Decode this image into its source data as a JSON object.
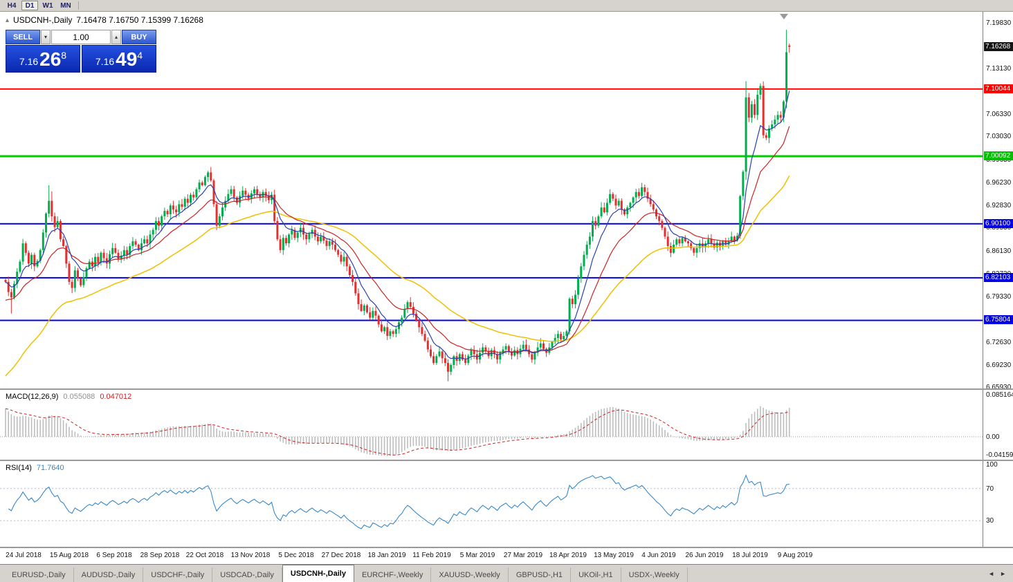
{
  "toolbar": {
    "timeframes": [
      "H4",
      "D1",
      "W1",
      "MN"
    ],
    "active": "D1"
  },
  "header": {
    "collapse_icon": "▴",
    "symbol": "USDCNH-,Daily",
    "ohlc_text": "7.16478 7.16750 7.15399 7.16268"
  },
  "one_click": {
    "sell_label": "SELL",
    "buy_label": "BUY",
    "volume": "1.00",
    "dec_icon": "▾",
    "inc_icon": "▴",
    "sell_price": {
      "prefix": "7.16",
      "big": "26",
      "sup": "8"
    },
    "buy_price": {
      "prefix": "7.16",
      "big": "49",
      "sup": "4"
    }
  },
  "macd_panel": {
    "title": "MACD(12,26,9)",
    "value_main": "0.055088",
    "value_signal": "0.047012",
    "scale_max": "0.085164",
    "scale_zero": "0.00",
    "scale_min": "-0.041597"
  },
  "rsi_panel": {
    "title": "RSI(14)",
    "value": "71.7640",
    "scale_labels": [
      "100",
      "70",
      "30"
    ]
  },
  "tabs": {
    "items": [
      "EURUSD-,Daily",
      "AUDUSD-,Daily",
      "USDCHF-,Daily",
      "USDCAD-,Daily",
      "USDCNH-,Daily",
      "EURCHF-,Weekly",
      "XAUUSD-,Weekly",
      "GBPUSD-,H1",
      "UKOil-,H1",
      "USDX-,Weekly"
    ],
    "active_index": 4,
    "scroll_left": "◄",
    "scroll_right": "►"
  },
  "chart_data": {
    "type": "candlestick",
    "symbol": "USDCNH-",
    "timeframe": "Daily",
    "current_bar": {
      "open": 7.16478,
      "high": 7.1675,
      "low": 7.15399,
      "close": 7.16268
    },
    "x_labels": [
      "24 Jul 2018",
      "15 Aug 2018",
      "6 Sep 2018",
      "28 Sep 2018",
      "22 Oct 2018",
      "13 Nov 2018",
      "5 Dec 2018",
      "27 Dec 2018",
      "18 Jan 2019",
      "11 Feb 2019",
      "5 Mar 2019",
      "27 Mar 2019",
      "18 Apr 2019",
      "13 May 2019",
      "4 Jun 2019",
      "26 Jun 2019",
      "18 Jul 2019",
      "9 Aug 2019"
    ],
    "y_ticks": [
      "7.19830",
      "7.16430",
      "7.13130",
      "7.09730",
      "7.06330",
      "7.03030",
      "6.99630",
      "6.96230",
      "6.92830",
      "6.89530",
      "6.86130",
      "6.82730",
      "6.79330",
      "6.75930",
      "6.72630",
      "6.69230",
      "6.65930"
    ],
    "open_first": 6.818,
    "closes": [
      6.815,
      6.8,
      6.792,
      6.812,
      6.83,
      6.845,
      6.872,
      6.858,
      6.842,
      6.855,
      6.838,
      6.846,
      6.862,
      6.888,
      6.916,
      6.935,
      6.912,
      6.896,
      6.905,
      6.878,
      6.868,
      6.842,
      6.815,
      6.806,
      6.832,
      6.82,
      6.81,
      6.822,
      6.835,
      6.845,
      6.838,
      6.852,
      6.844,
      6.858,
      6.85,
      6.842,
      6.856,
      6.865,
      6.858,
      6.848,
      6.854,
      6.862,
      6.855,
      6.868,
      6.875,
      6.87,
      6.862,
      6.872,
      6.878,
      6.872,
      6.885,
      6.892,
      6.905,
      6.898,
      6.912,
      6.92,
      6.915,
      6.928,
      6.922,
      6.918,
      6.93,
      6.926,
      6.938,
      6.932,
      6.944,
      6.94,
      6.952,
      6.962,
      6.958,
      6.97,
      6.977,
      6.965,
      6.93,
      6.898,
      6.912,
      6.925,
      6.935,
      6.945,
      6.952,
      6.94,
      6.932,
      6.942,
      6.95,
      6.944,
      6.938,
      6.946,
      6.952,
      6.945,
      6.94,
      6.948,
      6.942,
      6.936,
      6.944,
      6.905,
      6.878,
      6.862,
      6.88,
      6.872,
      6.885,
      6.892,
      6.88,
      6.888,
      6.895,
      6.885,
      6.878,
      6.886,
      6.892,
      6.882,
      6.875,
      6.882,
      6.876,
      6.868,
      6.875,
      6.87,
      6.862,
      6.855,
      6.845,
      6.852,
      6.838,
      6.825,
      6.815,
      6.798,
      6.782,
      6.772,
      6.78,
      6.77,
      6.762,
      6.772,
      6.765,
      6.752,
      6.742,
      6.748,
      6.735,
      6.742,
      6.738,
      6.745,
      6.755,
      6.762,
      6.775,
      6.785,
      6.778,
      6.768,
      6.758,
      6.748,
      6.738,
      6.728,
      6.715,
      6.705,
      6.695,
      6.705,
      6.712,
      6.702,
      6.695,
      6.682,
      6.692,
      6.705,
      6.698,
      6.708,
      6.7,
      6.695,
      6.706,
      6.714,
      6.708,
      6.7,
      6.71,
      6.718,
      6.712,
      6.705,
      6.714,
      6.708,
      6.7,
      6.71,
      6.715,
      6.72,
      6.712,
      6.706,
      6.714,
      6.708,
      6.716,
      6.722,
      6.715,
      6.708,
      6.7,
      6.71,
      6.718,
      6.724,
      6.716,
      6.71,
      6.718,
      6.726,
      6.732,
      6.738,
      6.73,
      6.735,
      6.742,
      6.79,
      6.782,
      6.796,
      6.82,
      6.838,
      6.855,
      6.87,
      6.882,
      6.905,
      6.898,
      6.912,
      6.925,
      6.918,
      6.932,
      6.945,
      6.938,
      6.928,
      6.935,
      6.922,
      6.915,
      6.925,
      6.932,
      6.94,
      6.948,
      6.942,
      6.955,
      6.948,
      6.938,
      6.93,
      6.922,
      6.912,
      6.905,
      6.895,
      6.882,
      6.868,
      6.858,
      6.87,
      6.878,
      6.872,
      6.88,
      6.875,
      6.872,
      6.865,
      6.858,
      6.865,
      6.872,
      6.866,
      6.872,
      6.878,
      6.872,
      6.866,
      6.873,
      6.868,
      6.875,
      6.87,
      6.876,
      6.882,
      6.876,
      6.883,
      6.942,
      6.978,
      7.088,
      7.058,
      7.078,
      7.062,
      7.092,
      7.105,
      7.032,
      7.028,
      7.042,
      7.048,
      7.055,
      7.062,
      7.058,
      7.082,
      7.128,
      7.16268
    ],
    "overrides": {
      "2": [
        null,
        null,
        6.768,
        null
      ],
      "15": [
        null,
        6.958,
        null,
        null
      ],
      "16": [
        null,
        6.949,
        null,
        null
      ],
      "153": [
        null,
        null,
        6.668,
        null
      ],
      "256": [
        null,
        7.112,
        6.966,
        null
      ],
      "270": [
        7.082,
        7.188,
        7.072,
        7.155
      ],
      "271": [
        7.16478,
        7.1675,
        7.15399,
        7.16268
      ]
    },
    "colors": {
      "up": "#00AE4D",
      "down": "#E23030",
      "histogram": "#BDBDBD",
      "signal": "#CC2222",
      "rsi_line": "#3388CC",
      "level_red": "#FF0000",
      "level_green": "#00CC00",
      "level_blue": "#0000E0",
      "badge_current": "#151515"
    },
    "mas": [
      {
        "name": "ma-slow",
        "period": 50,
        "color": "#EFC000",
        "seed": 6.67,
        "width": 1.5
      },
      {
        "name": "ma-mid",
        "period": 20,
        "color": "#CC2222",
        "seed": 6.785,
        "width": 1.2
      },
      {
        "name": "ma-fast",
        "period": 8,
        "color": "#2840B0",
        "seed": 6.815,
        "width": 1.2
      }
    ],
    "levels": [
      {
        "price": 7.10044,
        "color": "#FF0000",
        "width": 2
      },
      {
        "price": 7.00092,
        "color": "#00CC00",
        "width": 3
      },
      {
        "price": 6.901,
        "color": "#0000E0",
        "width": 2
      },
      {
        "price": 6.82103,
        "color": "#0000E0",
        "width": 2
      },
      {
        "price": 6.75804,
        "color": "#0000E0",
        "width": 2
      }
    ],
    "badges": [
      {
        "value": "7.16268",
        "price": 7.16268,
        "color": "#151515"
      },
      {
        "value": "7.10044",
        "price": 7.10044,
        "color": "#FF0000"
      },
      {
        "value": "7.00092",
        "price": 7.00092,
        "color": "#00C000"
      },
      {
        "value": "6.90100",
        "price": 6.901,
        "color": "#0000E0"
      },
      {
        "value": "6.82103",
        "price": 6.82103,
        "color": "#0000E0"
      },
      {
        "value": "6.75804",
        "price": 6.75804,
        "color": "#0000E0"
      }
    ],
    "macd": {
      "fast": 12,
      "slow": 26,
      "signal": 9,
      "seed_offset": 0.055,
      "scale_max": 0.085164,
      "scale_min": -0.041597
    },
    "rsi": {
      "period": 14,
      "levels": [
        70,
        30
      ],
      "range": [
        0,
        100
      ]
    }
  }
}
